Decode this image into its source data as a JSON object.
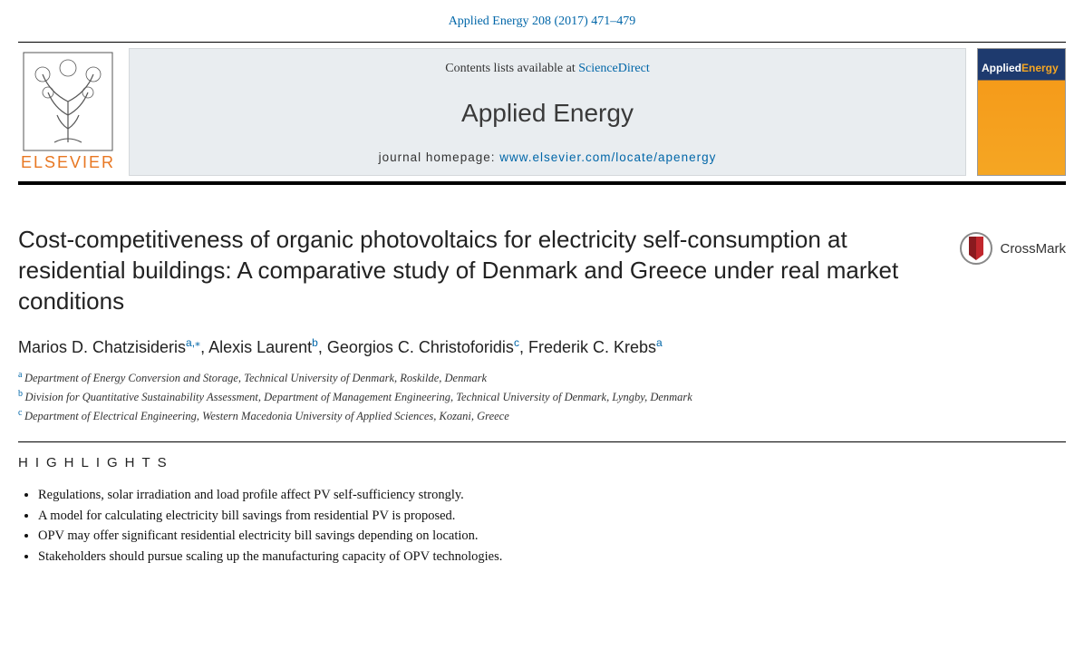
{
  "journal_reference": "Applied Energy 208 (2017) 471–479",
  "banner": {
    "contents_prefix": "Contents lists available at ",
    "sciencedirect": "ScienceDirect",
    "journal_name": "Applied Energy",
    "homepage_prefix": "journal homepage: ",
    "homepage_url": "www.elsevier.com/locate/apenergy",
    "publisher_logo_text": "ELSEVIER",
    "cover": {
      "word1": "Applied",
      "word2": "Energy"
    }
  },
  "crossmark_label": "CrossMark",
  "title": "Cost-competitiveness of organic photovoltaics for electricity self-consumption at residential buildings: A comparative study of Denmark and Greece under real market conditions",
  "authors": [
    {
      "name": "Marios D. Chatzisideris",
      "sup": "a,",
      "corr": "⁎"
    },
    {
      "name": "Alexis Laurent",
      "sup": "b"
    },
    {
      "name": "Georgios C. Christoforidis",
      "sup": "c"
    },
    {
      "name": "Frederik C. Krebs",
      "sup": "a"
    }
  ],
  "affiliations": [
    {
      "sup": "a",
      "text": "Department of Energy Conversion and Storage, Technical University of Denmark, Roskilde, Denmark"
    },
    {
      "sup": "b",
      "text": "Division for Quantitative Sustainability Assessment, Department of Management Engineering, Technical University of Denmark, Lyngby, Denmark"
    },
    {
      "sup": "c",
      "text": "Department of Electrical Engineering, Western Macedonia University of Applied Sciences, Kozani, Greece"
    }
  ],
  "highlights_heading": "HIGHLIGHTS",
  "highlights": [
    "Regulations, solar irradiation and load profile affect PV self-sufficiency strongly.",
    "A model for calculating electricity bill savings from residential PV is proposed.",
    "OPV may offer significant residential electricity bill savings depending on location.",
    "Stakeholders should pursue scaling up the manufacturing capacity of OPV technologies."
  ],
  "colors": {
    "link": "#0066a8",
    "elsevier_orange": "#e87722",
    "banner_bg": "#e9edf0",
    "cover_blue": "#1e3a6e",
    "cover_orange": "#f5a623"
  }
}
